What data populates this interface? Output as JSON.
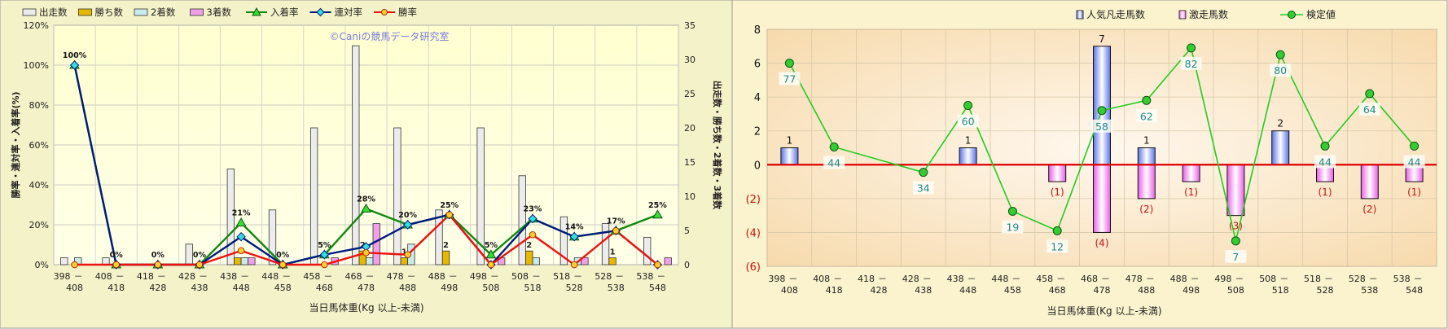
{
  "chart_data": [
    {
      "type": "bar",
      "watermark": "©Caniの競馬データ研究室",
      "xlabel": "当日馬体重(Kg  以上-未満)",
      "ylabel_left": "勝率・連対率・入着率(%)",
      "ylabel_right": "出走数・勝ち数・2着数・3着数",
      "ylim_left": [
        0,
        120
      ],
      "ylim_right": [
        0,
        35
      ],
      "categories": [
        [
          "398",
          "408"
        ],
        [
          "408",
          "418"
        ],
        [
          "418",
          "428"
        ],
        [
          "428",
          "438"
        ],
        [
          "438",
          "448"
        ],
        [
          "448",
          "458"
        ],
        [
          "458",
          "468"
        ],
        [
          "468",
          "478"
        ],
        [
          "478",
          "488"
        ],
        [
          "488",
          "498"
        ],
        [
          "498",
          "508"
        ],
        [
          "508",
          "518"
        ],
        [
          "518",
          "528"
        ],
        [
          "528",
          "538"
        ],
        [
          "538",
          "548"
        ]
      ],
      "left_ticks": [
        "0%",
        "20%",
        "40%",
        "60%",
        "80%",
        "100%",
        "120%"
      ],
      "right_ticks": [
        "0",
        "5",
        "10",
        "15",
        "20",
        "25",
        "30",
        "35"
      ],
      "bar_series": [
        {
          "name": "出走数",
          "color": "#ececec",
          "values": [
            1,
            1,
            0,
            3,
            14,
            8,
            20,
            32,
            20,
            8,
            20,
            13,
            7,
            6,
            4
          ]
        },
        {
          "name": "勝ち数",
          "color": "#e6b800",
          "values": [
            0,
            0,
            0,
            0,
            1,
            0,
            0,
            2,
            1,
            2,
            0,
            2,
            0,
            1,
            0
          ]
        },
        {
          "name": "2着数",
          "color": "#c8ecec",
          "values": [
            1,
            0,
            0,
            0,
            1,
            0,
            0,
            1,
            3,
            0,
            0,
            1,
            1,
            0,
            0
          ]
        },
        {
          "name": "3着数",
          "color": "#f0a0e6",
          "values": [
            0,
            0,
            0,
            0,
            1,
            0,
            1,
            6,
            0,
            0,
            1,
            0,
            1,
            0,
            1
          ]
        }
      ],
      "line_series": [
        {
          "name": "入着率",
          "color": "#118811",
          "marker": "triangle",
          "values": [
            100,
            0,
            0,
            0,
            21,
            0,
            5,
            28,
            20,
            25,
            5,
            23,
            14,
            17,
            25
          ]
        },
        {
          "name": "連対率",
          "color": "#001a80",
          "marker": "diamond",
          "values": [
            100,
            0,
            0,
            0,
            14,
            0,
            5,
            9,
            20,
            25,
            0,
            23,
            14,
            17,
            0
          ]
        },
        {
          "name": "勝率",
          "color": "#ee1111",
          "marker": "circle",
          "values": [
            0,
            0,
            0,
            0,
            7,
            0,
            0,
            6,
            5,
            25,
            0,
            15,
            0,
            17,
            0
          ]
        }
      ],
      "point_labels": [
        {
          "i": 0,
          "text": "100%",
          "value": 100
        },
        {
          "i": 1,
          "text": "0%",
          "value": 0
        },
        {
          "i": 2,
          "text": "0%",
          "value": 0
        },
        {
          "i": 3,
          "text": "0%",
          "value": 0
        },
        {
          "i": 4,
          "text": "21%",
          "value": 21
        },
        {
          "i": 5,
          "text": "0%",
          "value": 0
        },
        {
          "i": 6,
          "text": "5%",
          "value": 5
        },
        {
          "i": 7,
          "text": "28%",
          "value": 28
        },
        {
          "i": 8,
          "text": "20%",
          "value": 20
        },
        {
          "i": 9,
          "text": "25%",
          "value": 25
        },
        {
          "i": 10,
          "text": "5%",
          "value": 5
        },
        {
          "i": 11,
          "text": "23%",
          "value": 23
        },
        {
          "i": 12,
          "text": "14%",
          "value": 14
        },
        {
          "i": 13,
          "text": "17%",
          "value": 17
        },
        {
          "i": 14,
          "text": "25%",
          "value": 25
        }
      ],
      "win_count_labels": [
        {
          "i": 7,
          "text": "2"
        },
        {
          "i": 8,
          "text": "1"
        },
        {
          "i": 9,
          "text": "2"
        },
        {
          "i": 11,
          "text": "2"
        },
        {
          "i": 13,
          "text": "1"
        }
      ]
    },
    {
      "type": "bar",
      "xlabel": "当日馬体重(Kg  以上-未満)",
      "ylim": [
        -6,
        8
      ],
      "y_ticks": [
        "(6)",
        "(4)",
        "(2)",
        "0",
        "2",
        "4",
        "6",
        "8"
      ],
      "categories": [
        [
          "398",
          "408"
        ],
        [
          "408",
          "418"
        ],
        [
          "418",
          "428"
        ],
        [
          "428",
          "438"
        ],
        [
          "438",
          "448"
        ],
        [
          "448",
          "458"
        ],
        [
          "458",
          "468"
        ],
        [
          "468",
          "478"
        ],
        [
          "478",
          "488"
        ],
        [
          "488",
          "498"
        ],
        [
          "498",
          "508"
        ],
        [
          "508",
          "518"
        ],
        [
          "518",
          "528"
        ],
        [
          "528",
          "538"
        ],
        [
          "538",
          "548"
        ]
      ],
      "series": [
        {
          "name": "人気凡走馬数",
          "color": "#8aa0f0",
          "values": [
            1,
            0,
            0,
            0,
            1,
            0,
            0,
            7,
            1,
            0,
            0,
            2,
            0,
            0,
            0
          ]
        },
        {
          "name": "激走馬数",
          "color": "#f080ee",
          "values": [
            0,
            0,
            0,
            0,
            0,
            0,
            -1,
            -4,
            -2,
            -1,
            -3,
            0,
            -1,
            -2,
            -1
          ]
        }
      ],
      "positive_labels": [
        {
          "i": 0,
          "text": "1"
        },
        {
          "i": 4,
          "text": "1"
        },
        {
          "i": 7,
          "text": "7"
        },
        {
          "i": 8,
          "text": "1"
        },
        {
          "i": 11,
          "text": "2"
        }
      ],
      "negative_labels": [
        {
          "i": 6,
          "text": "(1)"
        },
        {
          "i": 7,
          "text": "(4)"
        },
        {
          "i": 8,
          "text": "(2)"
        },
        {
          "i": 9,
          "text": "(1)"
        },
        {
          "i": 10,
          "text": "(3)"
        },
        {
          "i": 12,
          "text": "(1)"
        },
        {
          "i": 13,
          "text": "(2)"
        },
        {
          "i": 14,
          "text": "(1)"
        }
      ],
      "line": {
        "name": "検定値",
        "color": "#22cc22",
        "points": [
          {
            "i": 0,
            "y": 6.0,
            "label": "77"
          },
          {
            "i": 1,
            "y": 1.05,
            "label": "44"
          },
          {
            "i": 3,
            "y": -0.45,
            "label": "34"
          },
          {
            "i": 4,
            "y": 3.5,
            "label": "60"
          },
          {
            "i": 5,
            "y": -2.75,
            "label": "19"
          },
          {
            "i": 6,
            "y": -3.9,
            "label": "12"
          },
          {
            "i": 7,
            "y": 3.2,
            "label": "58"
          },
          {
            "i": 8,
            "y": 3.8,
            "label": "62"
          },
          {
            "i": 9,
            "y": 6.9,
            "label": "82"
          },
          {
            "i": 10,
            "y": -4.5,
            "label": "7"
          },
          {
            "i": 11,
            "y": 6.5,
            "label": "80"
          },
          {
            "i": 12,
            "y": 1.1,
            "label": "44"
          },
          {
            "i": 13,
            "y": 4.2,
            "label": "64"
          },
          {
            "i": 14,
            "y": 1.1,
            "label": "44"
          }
        ]
      }
    }
  ]
}
